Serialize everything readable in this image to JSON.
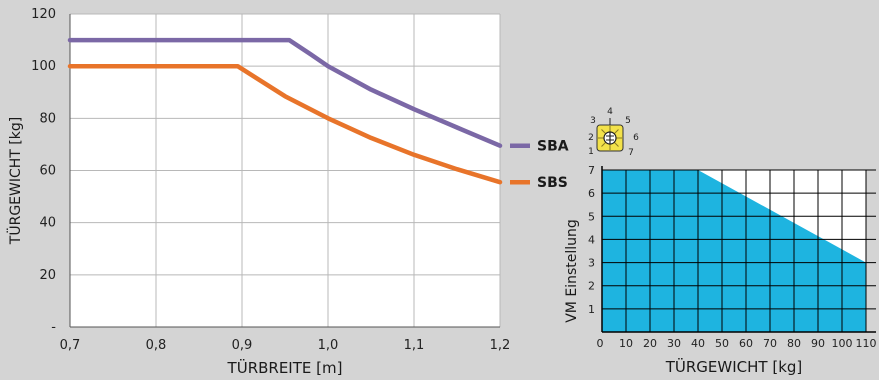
{
  "chart_data": [
    {
      "type": "line",
      "xlabel": "TÜRBREITE [m]",
      "ylabel": "TÜRGEWICHT [kg]",
      "xlim": [
        0.7,
        1.2
      ],
      "ylim": [
        0,
        120
      ],
      "x_tick_labels": [
        "0,7",
        "0,8",
        "0,9",
        "1,0",
        "1,1",
        "1,2"
      ],
      "x_ticks": [
        0.7,
        0.8,
        0.9,
        1.0,
        1.1,
        1.2
      ],
      "y_tick_labels": [
        "-",
        "20",
        "40",
        "60",
        "80",
        "100",
        "120"
      ],
      "y_ticks": [
        0,
        20,
        40,
        60,
        80,
        100,
        120
      ],
      "grid": true,
      "legend": "right",
      "series": [
        {
          "name": "SBA",
          "color": "#7b68a6",
          "x": [
            0.7,
            0.955,
            0.98,
            1.0,
            1.05,
            1.1,
            1.15,
            1.2
          ],
          "y": [
            110,
            110,
            104.5,
            100.0,
            91.0,
            83.5,
            76.5,
            69.5
          ]
        },
        {
          "name": "SBS",
          "color": "#e8742a",
          "x": [
            0.7,
            0.895,
            0.95,
            1.0,
            1.05,
            1.1,
            1.15,
            1.2
          ],
          "y": [
            100,
            100,
            88.5,
            80.0,
            72.5,
            66.0,
            60.5,
            55.5
          ]
        }
      ]
    },
    {
      "type": "area",
      "xlabel": "TÜRGEWICHT [kg]",
      "ylabel": "VM Einstellung",
      "xlim": [
        0,
        110
      ],
      "ylim": [
        0,
        7
      ],
      "x_tick_labels": [
        "0",
        "10",
        "20",
        "30",
        "40",
        "50",
        "60",
        "70",
        "80",
        "90",
        "100",
        "110"
      ],
      "x_ticks": [
        0,
        10,
        20,
        30,
        40,
        50,
        60,
        70,
        80,
        90,
        100,
        110
      ],
      "y_tick_labels": [
        "1",
        "2",
        "3",
        "4",
        "5",
        "6",
        "7"
      ],
      "y_ticks": [
        1,
        2,
        3,
        4,
        5,
        6,
        7
      ],
      "grid": true,
      "fill_color": "#1eb4e0",
      "series": [
        {
          "x": [
            0,
            40,
            110
          ],
          "y": [
            7,
            7,
            3
          ]
        }
      ]
    }
  ],
  "dial": {
    "icon": "adjustment-dial-icon",
    "numbers": [
      "1",
      "2",
      "3",
      "4",
      "5",
      "6",
      "7"
    ],
    "color": "#f3e24a"
  }
}
